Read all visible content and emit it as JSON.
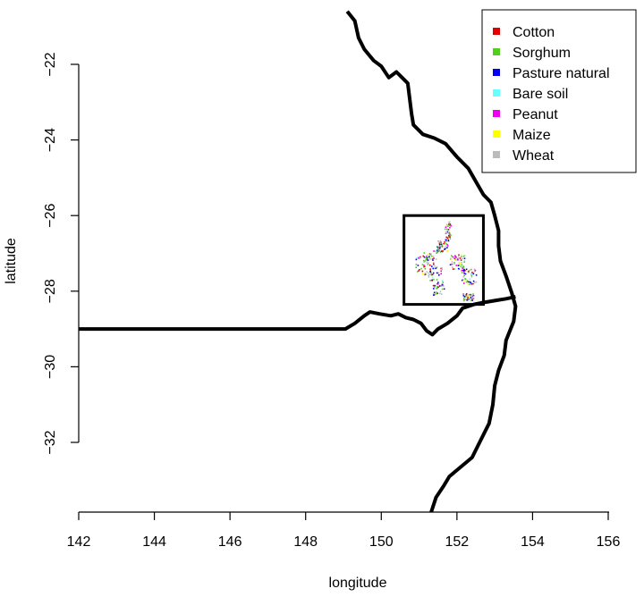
{
  "chart_data": {
    "type": "scatter",
    "title": "",
    "xlabel": "longitude",
    "ylabel": "latitude",
    "xlim": [
      142,
      156
    ],
    "ylim": [
      -33.9,
      -20.6
    ],
    "xticks": [
      142,
      144,
      146,
      148,
      150,
      152,
      154,
      156
    ],
    "yticks": [
      -22,
      -24,
      -26,
      -28,
      -30,
      -32
    ],
    "legend_position": "top-right",
    "grid": false,
    "series": [
      {
        "name": "Cotton",
        "color": "#e00000"
      },
      {
        "name": "Sorghum",
        "color": "#55cc22"
      },
      {
        "name": "Pasture natural",
        "color": "#0000ee"
      },
      {
        "name": "Bare soil",
        "color": "#66ffff"
      },
      {
        "name": "Peanut",
        "color": "#ee00ee"
      },
      {
        "name": "Maize",
        "color": "#ffff00"
      },
      {
        "name": "Wheat",
        "color": "#bbbbbb"
      }
    ],
    "study_area_box": {
      "lon_min": 150.6,
      "lon_max": 152.7,
      "lat_min": -28.35,
      "lat_max": -26.0
    },
    "coastline": [
      [
        149.1,
        -20.6
      ],
      [
        149.3,
        -20.85
      ],
      [
        149.4,
        -21.3
      ],
      [
        149.55,
        -21.6
      ],
      [
        149.8,
        -21.9
      ],
      [
        150.0,
        -22.05
      ],
      [
        150.2,
        -22.35
      ],
      [
        150.4,
        -22.2
      ],
      [
        150.5,
        -22.3
      ],
      [
        150.7,
        -22.5
      ],
      [
        150.75,
        -22.9
      ],
      [
        150.8,
        -23.3
      ],
      [
        150.85,
        -23.6
      ],
      [
        151.1,
        -23.85
      ],
      [
        151.4,
        -23.95
      ],
      [
        151.7,
        -24.1
      ],
      [
        152.0,
        -24.45
      ],
      [
        152.3,
        -24.75
      ],
      [
        152.5,
        -25.1
      ],
      [
        152.7,
        -25.45
      ],
      [
        152.9,
        -25.65
      ],
      [
        153.0,
        -26.0
      ],
      [
        153.1,
        -26.4
      ],
      [
        153.1,
        -26.8
      ],
      [
        153.15,
        -27.2
      ],
      [
        153.3,
        -27.6
      ],
      [
        153.45,
        -28.05
      ],
      [
        153.55,
        -28.4
      ],
      [
        153.5,
        -28.8
      ],
      [
        153.3,
        -29.3
      ],
      [
        153.25,
        -29.7
      ],
      [
        153.1,
        -30.1
      ],
      [
        153.0,
        -30.5
      ],
      [
        152.95,
        -31.0
      ],
      [
        152.85,
        -31.5
      ],
      [
        152.6,
        -32.0
      ],
      [
        152.4,
        -32.4
      ],
      [
        152.1,
        -32.65
      ],
      [
        151.8,
        -32.9
      ],
      [
        151.65,
        -33.15
      ],
      [
        151.45,
        -33.45
      ],
      [
        151.3,
        -33.9
      ]
    ],
    "state_border": [
      [
        142.0,
        -29.0
      ],
      [
        149.05,
        -29.0
      ],
      [
        149.3,
        -28.85
      ],
      [
        149.55,
        -28.65
      ],
      [
        149.7,
        -28.55
      ],
      [
        149.95,
        -28.6
      ],
      [
        150.25,
        -28.65
      ],
      [
        150.45,
        -28.6
      ],
      [
        150.65,
        -28.7
      ],
      [
        150.85,
        -28.75
      ],
      [
        151.05,
        -28.85
      ],
      [
        151.2,
        -29.05
      ],
      [
        151.35,
        -29.15
      ],
      [
        151.5,
        -29.0
      ],
      [
        151.75,
        -28.85
      ],
      [
        152.0,
        -28.65
      ],
      [
        152.15,
        -28.45
      ],
      [
        152.45,
        -28.35
      ],
      [
        152.7,
        -28.3
      ],
      [
        153.0,
        -28.25
      ],
      [
        153.3,
        -28.2
      ],
      [
        153.55,
        -28.15
      ]
    ]
  }
}
